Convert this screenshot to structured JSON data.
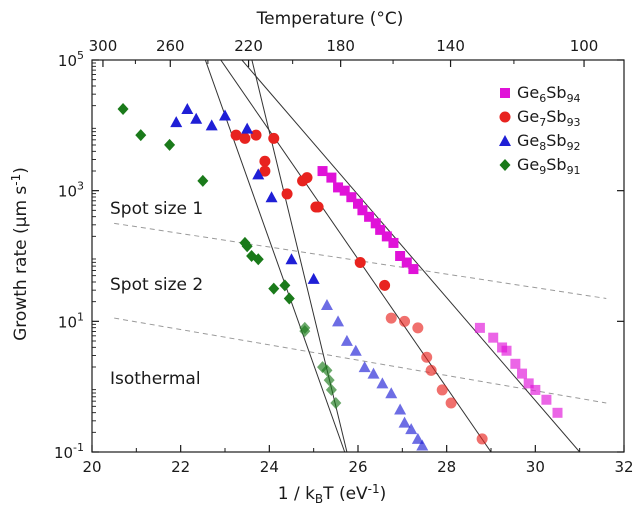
{
  "chart_data": {
    "type": "scatter",
    "xlabel": "1 / k",
    "xlabel_sub": "B",
    "xlabel_tail": "T (eV",
    "xlabel_sup": "-1",
    "xlabel_end": ")",
    "ylabel": "Growth rate (µm s",
    "ylabel_sup": "-1",
    "ylabel_end": ")",
    "top_xlabel": "Temperature (°C)",
    "xlim": [
      20,
      32
    ],
    "ylim_log10": [
      -1,
      5
    ],
    "y_scale": "log",
    "x_ticks": [
      "20",
      "22",
      "24",
      "26",
      "28",
      "30",
      "32"
    ],
    "y_ticks": [
      {
        "base": "10",
        "exp": "-1"
      },
      {
        "base": "10",
        "exp": "1"
      },
      {
        "base": "10",
        "exp": "3"
      },
      {
        "base": "10",
        "exp": "5"
      }
    ],
    "top_ticks_celsius": [
      "300",
      "260",
      "220",
      "180",
      "140",
      "100"
    ],
    "grid": false,
    "legend_position": "top-right",
    "legend": [
      {
        "pre": "Ge",
        "sub1": "6",
        "mid": "Sb",
        "sub2": "94",
        "color": "#e012d8",
        "marker": "square"
      },
      {
        "pre": "Ge",
        "sub1": "7",
        "mid": "Sb",
        "sub2": "93",
        "color": "#e8231f",
        "marker": "circle"
      },
      {
        "pre": "Ge",
        "sub1": "8",
        "mid": "Sb",
        "sub2": "92",
        "color": "#1f1fd6",
        "marker": "triangle"
      },
      {
        "pre": "Ge",
        "sub1": "9",
        "mid": "Sb",
        "sub2": "91",
        "color": "#1a7a1a",
        "marker": "diamond"
      }
    ],
    "region_labels": [
      "Spot size 1",
      "Spot size 2",
      "Isothermal"
    ],
    "separators": [
      {
        "x": [
          20.5,
          31.6
        ],
        "y_log10": [
          2.5,
          1.35
        ]
      },
      {
        "x": [
          20.5,
          31.6
        ],
        "y_log10": [
          1.05,
          -0.25
        ]
      }
    ],
    "fit_lines": [
      {
        "series": "Ge6Sb94",
        "x": [
          23.0,
          31.0
        ],
        "y_log10": [
          5.3,
          -1.0
        ]
      },
      {
        "series": "Ge7Sb93",
        "x": [
          22.6,
          29.0
        ],
        "y_log10": [
          5.3,
          -1.0
        ]
      },
      {
        "series": "Ge8Sb92",
        "x": [
          22.4,
          25.7
        ],
        "y_log10": [
          5.3,
          -1.0
        ]
      },
      {
        "series": "Ge9Sb91",
        "x": [
          23.5,
          25.75
        ],
        "y_log10": [
          5.3,
          -1.0
        ]
      }
    ],
    "series": [
      {
        "name": "Ge6Sb94",
        "color": "#e012d8",
        "marker": "square",
        "x": [
          25.2,
          25.4,
          25.55,
          25.7,
          25.85,
          26.0,
          26.1,
          26.25,
          26.4,
          26.5,
          26.65,
          26.8,
          26.95,
          27.1,
          27.25,
          28.75,
          29.05,
          29.25,
          29.35,
          29.55,
          29.7,
          29.85,
          30.0,
          30.25,
          30.5
        ],
        "y_log10": [
          3.3,
          3.2,
          3.05,
          3.0,
          2.9,
          2.8,
          2.7,
          2.6,
          2.5,
          2.4,
          2.3,
          2.2,
          2.0,
          1.9,
          1.8,
          0.9,
          0.75,
          0.6,
          0.55,
          0.35,
          0.2,
          0.05,
          -0.05,
          -0.2,
          -0.4
        ]
      },
      {
        "name": "Ge7Sb93",
        "color": "#e8231f",
        "marker": "circle",
        "x": [
          23.25,
          23.45,
          23.7,
          23.9,
          24.1,
          23.9,
          24.4,
          24.75,
          24.85,
          25.05,
          25.1,
          26.05,
          26.6,
          26.75,
          27.05,
          27.35,
          27.55,
          27.65,
          27.9,
          28.1,
          28.8
        ],
        "y_log10": [
          3.85,
          3.8,
          3.85,
          3.45,
          3.8,
          3.3,
          2.95,
          3.15,
          3.2,
          2.75,
          2.75,
          1.9,
          1.55,
          1.05,
          1.0,
          0.9,
          0.45,
          0.25,
          -0.05,
          -0.25,
          -0.8
        ]
      },
      {
        "name": "Ge8Sb92",
        "color": "#1f1fd6",
        "marker": "triangle",
        "x": [
          21.9,
          22.15,
          22.35,
          22.7,
          23.0,
          23.5,
          23.75,
          24.05,
          24.5,
          25.0,
          25.3,
          25.55,
          25.75,
          25.95,
          26.15,
          26.35,
          26.55,
          26.75,
          26.95,
          27.05,
          27.2,
          27.35,
          27.45
        ],
        "y_log10": [
          4.05,
          4.25,
          4.1,
          4.0,
          4.15,
          3.95,
          3.25,
          2.9,
          1.95,
          1.65,
          1.25,
          1.0,
          0.7,
          0.55,
          0.3,
          0.2,
          0.05,
          -0.1,
          -0.35,
          -0.55,
          -0.65,
          -0.8,
          -0.9
        ]
      },
      {
        "name": "Ge9Sb91",
        "color": "#1a7a1a",
        "marker": "diamond",
        "x": [
          20.7,
          21.1,
          21.75,
          22.5,
          23.45,
          23.5,
          23.6,
          23.75,
          24.1,
          24.35,
          24.45,
          24.8,
          24.8,
          25.2,
          25.3,
          25.35,
          25.4,
          25.5
        ],
        "y_log10": [
          4.25,
          3.85,
          3.7,
          3.15,
          2.2,
          2.15,
          2.0,
          1.95,
          1.5,
          1.55,
          1.35,
          0.9,
          0.85,
          0.3,
          0.25,
          0.1,
          -0.05,
          -0.25
        ]
      }
    ]
  }
}
